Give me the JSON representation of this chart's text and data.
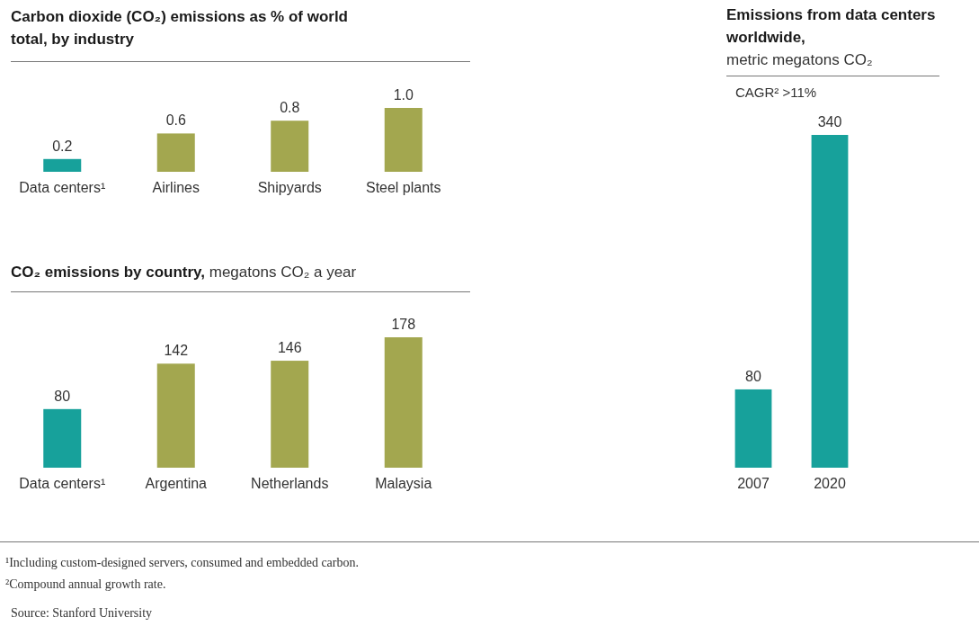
{
  "chart_data": [
    {
      "type": "bar",
      "title": "Carbon dioxide (CO₂) emissions as % of world total, by industry",
      "categories": [
        "Data centers¹",
        "Airlines",
        "Shipyards",
        "Steel plants"
      ],
      "values": [
        0.2,
        0.6,
        0.8,
        1.0
      ],
      "colors": [
        "#17a19b",
        "#a3a74f",
        "#a3a74f",
        "#a3a74f"
      ],
      "value_labels": [
        "0.2",
        "0.6",
        "0.8",
        "1.0"
      ],
      "tick_labels": "x",
      "annotations": [
        "¹Including custom-designed servers, consumed and embedded carbon.",
        "²Compound annual growth rate.",
        "Source: Stanford University"
      ]
    },
    {
      "type": "bar",
      "title": "CO₂ emissions by country,",
      "subtitle": "megatons CO₂ a year",
      "categories": [
        "Data centers¹",
        "Argentina",
        "Netherlands",
        "Malaysia"
      ],
      "values": [
        80,
        142,
        146,
        178
      ],
      "colors": [
        "#17a19b",
        "#a3a74f",
        "#a3a74f",
        "#a3a74f"
      ],
      "data_labels": true,
      "tick_labels": "x"
    },
    {
      "type": "bar",
      "title": "Emissions from data centers worldwide,",
      "subtitle": "metric megatons CO₂",
      "categories": [
        "2007",
        "2020"
      ],
      "values": [
        80,
        340
      ],
      "colors": [
        "#17a19b",
        "#17a19b"
      ],
      "data_labels": true,
      "tick_labels": "x",
      "annotations": [
        "CAGR² >11%"
      ]
    }
  ]
}
